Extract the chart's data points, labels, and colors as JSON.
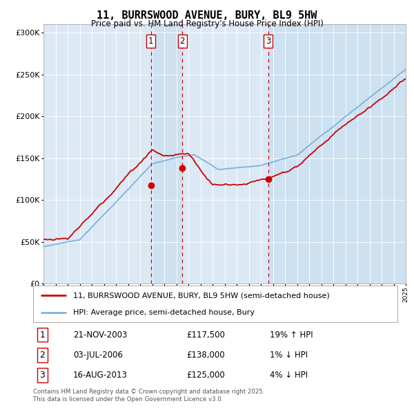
{
  "title": "11, BURRSWOOD AVENUE, BURY, BL9 5HW",
  "subtitle": "Price paid vs. HM Land Registry's House Price Index (HPI)",
  "background_color": "#ffffff",
  "chart_bg_color": "#dce9f5",
  "grid_color": "#ffffff",
  "hpi_line_color": "#7fb3d9",
  "price_line_color": "#cc0000",
  "sale_marker_color": "#cc0000",
  "dashed_line_color": "#cc0000",
  "ylim": [
    0,
    310000
  ],
  "yticks": [
    0,
    50000,
    100000,
    150000,
    200000,
    250000,
    300000
  ],
  "ytick_labels": [
    "£0",
    "£50K",
    "£100K",
    "£150K",
    "£200K",
    "£250K",
    "£300K"
  ],
  "xstart_year": 1995,
  "xend_year": 2025,
  "sales": [
    {
      "label": "1",
      "date_num": 2003.9,
      "price": 117500,
      "date_str": "21-NOV-2003"
    },
    {
      "label": "2",
      "date_num": 2006.5,
      "price": 138000,
      "date_str": "03-JUL-2006"
    },
    {
      "label": "3",
      "date_num": 2013.6,
      "price": 125000,
      "date_str": "16-AUG-2013"
    }
  ],
  "legend_entries": [
    {
      "label": "11, BURRSWOOD AVENUE, BURY, BL9 5HW (semi-detached house)",
      "color": "#cc0000"
    },
    {
      "label": "HPI: Average price, semi-detached house, Bury",
      "color": "#7fb3d9"
    }
  ],
  "footnote": "Contains HM Land Registry data © Crown copyright and database right 2025.\nThis data is licensed under the Open Government Licence v3.0.",
  "table_rows": [
    [
      "1",
      "21-NOV-2003",
      "£117,500",
      "19% ↑ HPI"
    ],
    [
      "2",
      "03-JUL-2006",
      "£138,000",
      "1% ↓ HPI"
    ],
    [
      "3",
      "16-AUG-2013",
      "£125,000",
      "4% ↓ HPI"
    ]
  ]
}
